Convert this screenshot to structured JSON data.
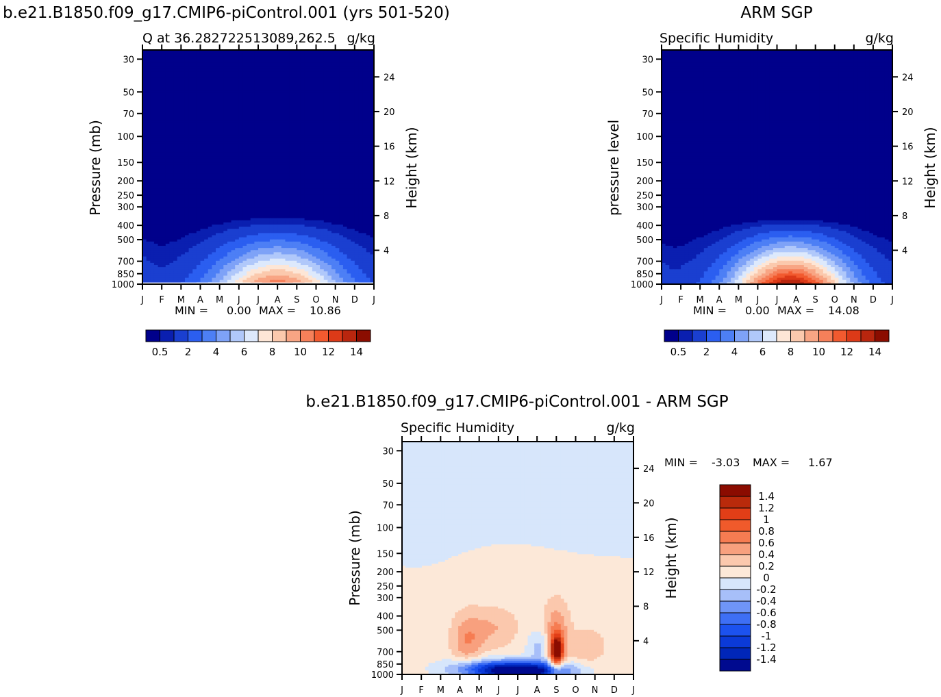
{
  "page": {
    "title_left": "b.e21.B1850.f09_g17.CMIP6-piControl.001 (yrs 501-520)",
    "title_right": "ARM SGP",
    "title_diff": "b.e21.B1850.f09_g17.CMIP6-piControl.001 - ARM SGP"
  },
  "colors": {
    "abs_levels": [
      "#00008b",
      "#0a1fb0",
      "#1a3fd0",
      "#2b5ef0",
      "#4d7ff5",
      "#7ea2f7",
      "#b0c8fa",
      "#dde9fc",
      "#fde6d6",
      "#fbc9ad",
      "#f8a584",
      "#f6805a",
      "#f25a2f",
      "#dc3a18",
      "#b9260e",
      "#8b0d00"
    ],
    "diff_levels": [
      "#000a8f",
      "#0026b8",
      "#0b3ad8",
      "#1c52ef",
      "#3e6ff5",
      "#6f95f7",
      "#a7bff9",
      "#d7e6fb",
      "#fce8d8",
      "#fbc8ad",
      "#f8a07e",
      "#f67c52",
      "#f05a2b",
      "#e23e17",
      "#b92a0b",
      "#8b0c00"
    ]
  },
  "chart_data": [
    {
      "type": "heatmap",
      "subtitle_left": "Q at 36.282722513089,262.5",
      "subtitle_right": "g/kg",
      "ylabel": "Pressure (mb)",
      "ylabel_right": "Height (km)",
      "months": [
        "J",
        "F",
        "M",
        "A",
        "M",
        "J",
        "J",
        "A",
        "S",
        "O",
        "N",
        "D",
        "J"
      ],
      "pressure_ticks": [
        30,
        50,
        70,
        100,
        150,
        200,
        250,
        300,
        400,
        500,
        700,
        850,
        1000
      ],
      "height_ticks": [
        24,
        20,
        16,
        12,
        8,
        4
      ],
      "min_label": "MIN =",
      "min_value": "0.00",
      "max_label": "MAX =",
      "max_value": "10.86",
      "colorbar_labels": [
        "0.5",
        "2",
        "4",
        "6",
        "8",
        "10",
        "12",
        "14"
      ],
      "surface_pressure_mb": 975,
      "max_g_kg": 10.86
    },
    {
      "type": "heatmap",
      "subtitle_left": "Specific Humidity",
      "subtitle_right": "g/kg",
      "ylabel": "pressure level",
      "ylabel_right": "Height (km)",
      "months": [
        "J",
        "F",
        "M",
        "A",
        "M",
        "J",
        "J",
        "A",
        "S",
        "O",
        "N",
        "D",
        "J"
      ],
      "pressure_ticks": [
        30,
        50,
        70,
        100,
        150,
        200,
        250,
        300,
        400,
        500,
        700,
        850,
        1000
      ],
      "height_ticks": [
        24,
        20,
        16,
        12,
        8,
        4
      ],
      "min_label": "MIN =",
      "min_value": "0.00",
      "max_label": "MAX =",
      "max_value": "14.08",
      "colorbar_labels": [
        "0.5",
        "2",
        "4",
        "6",
        "8",
        "10",
        "12",
        "14"
      ],
      "surface_pressure_mb": 1000,
      "max_g_kg": 14.08
    },
    {
      "type": "heatmap",
      "subtitle_left": "Specific Humidity",
      "subtitle_right": "g/kg",
      "ylabel": "Pressure (mb)",
      "ylabel_right": "Height (km)",
      "months": [
        "J",
        "F",
        "M",
        "A",
        "M",
        "J",
        "J",
        "A",
        "S",
        "O",
        "N",
        "D",
        "J"
      ],
      "pressure_ticks": [
        30,
        50,
        70,
        100,
        150,
        200,
        250,
        300,
        400,
        500,
        700,
        850,
        1000
      ],
      "height_ticks": [
        24,
        20,
        16,
        12,
        8,
        4
      ],
      "min_label": "MIN =",
      "min_value": "-3.03",
      "max_label": "MAX =",
      "max_value": "1.67",
      "colorbar_labels": [
        "1.4",
        "1.2",
        "1",
        "0.8",
        "0.6",
        "0.4",
        "0.2",
        "0",
        "-0.2",
        "-0.4",
        "-0.6",
        "-0.8",
        "-1",
        "-1.2",
        "-1.4"
      ],
      "min_g_kg": -3.03,
      "max_g_kg": 1.67
    }
  ]
}
